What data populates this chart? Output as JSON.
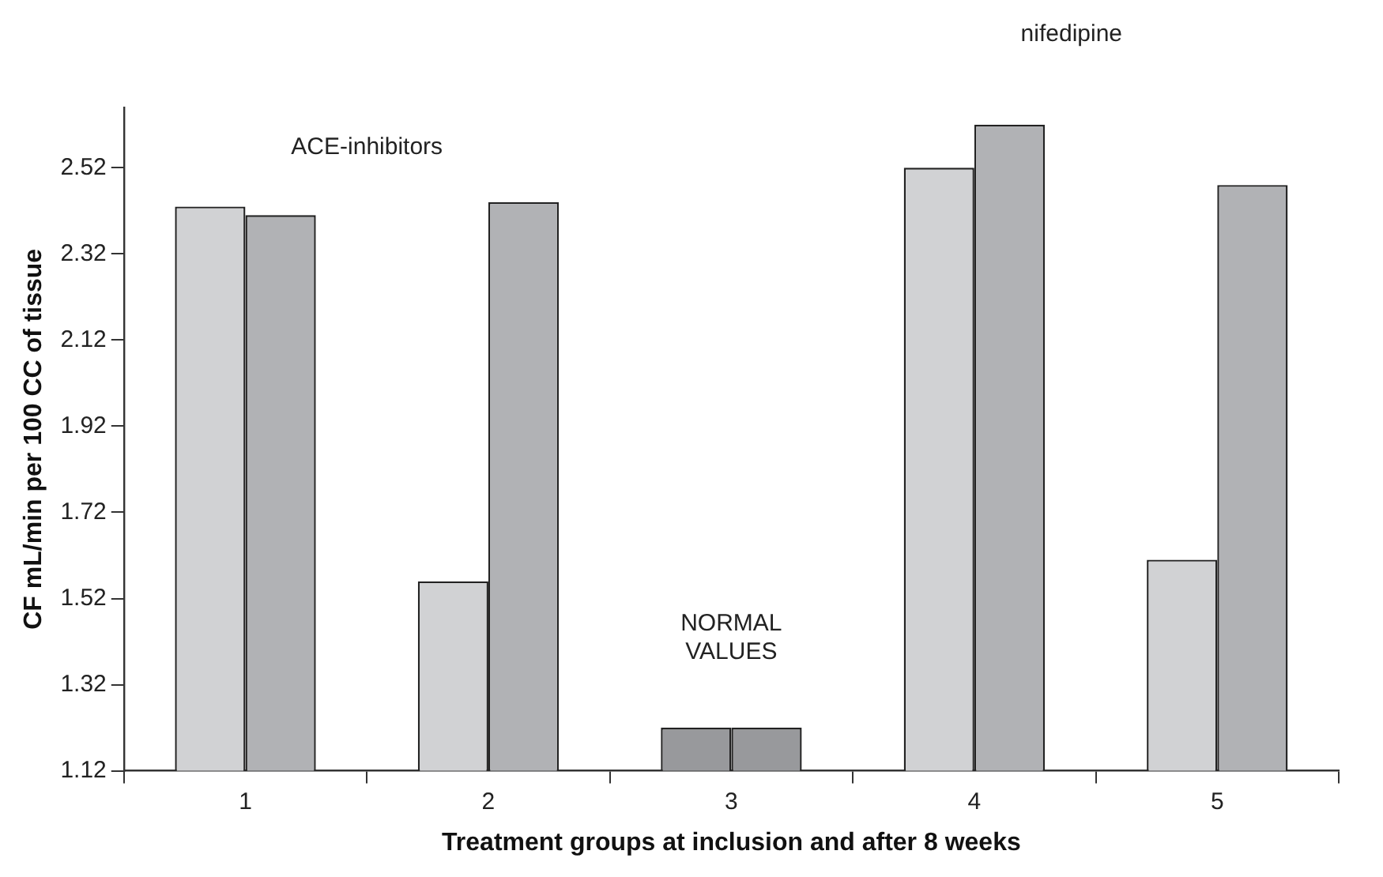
{
  "chart_data": {
    "type": "bar",
    "xlabel": "Treatment groups at inclusion and after 8 weeks",
    "ylabel": "CF mL/min per 100 CC of tissue",
    "categories": [
      "1",
      "2",
      "3",
      "4",
      "5"
    ],
    "series": [
      {
        "colors": [
          "#d1d2d4",
          "#d1d2d4",
          "#98999c",
          "#d1d2d4",
          "#d1d2d4"
        ],
        "values": [
          2.43,
          1.56,
          1.22,
          2.52,
          1.61
        ]
      },
      {
        "colors": [
          "#b1b2b5",
          "#b1b2b5",
          "#98999c",
          "#b1b2b5",
          "#b1b2b5"
        ],
        "values": [
          2.41,
          2.44,
          1.22,
          2.62,
          2.48
        ]
      }
    ],
    "ylim": [
      1.12,
      2.66
    ],
    "yticks": [
      1.12,
      1.32,
      1.52,
      1.72,
      1.92,
      2.12,
      2.32,
      2.52
    ],
    "grid": false,
    "legend": false,
    "annotations": [
      "ACE-inhibitors",
      "NORMAL VALUES",
      "nifedipine"
    ]
  }
}
